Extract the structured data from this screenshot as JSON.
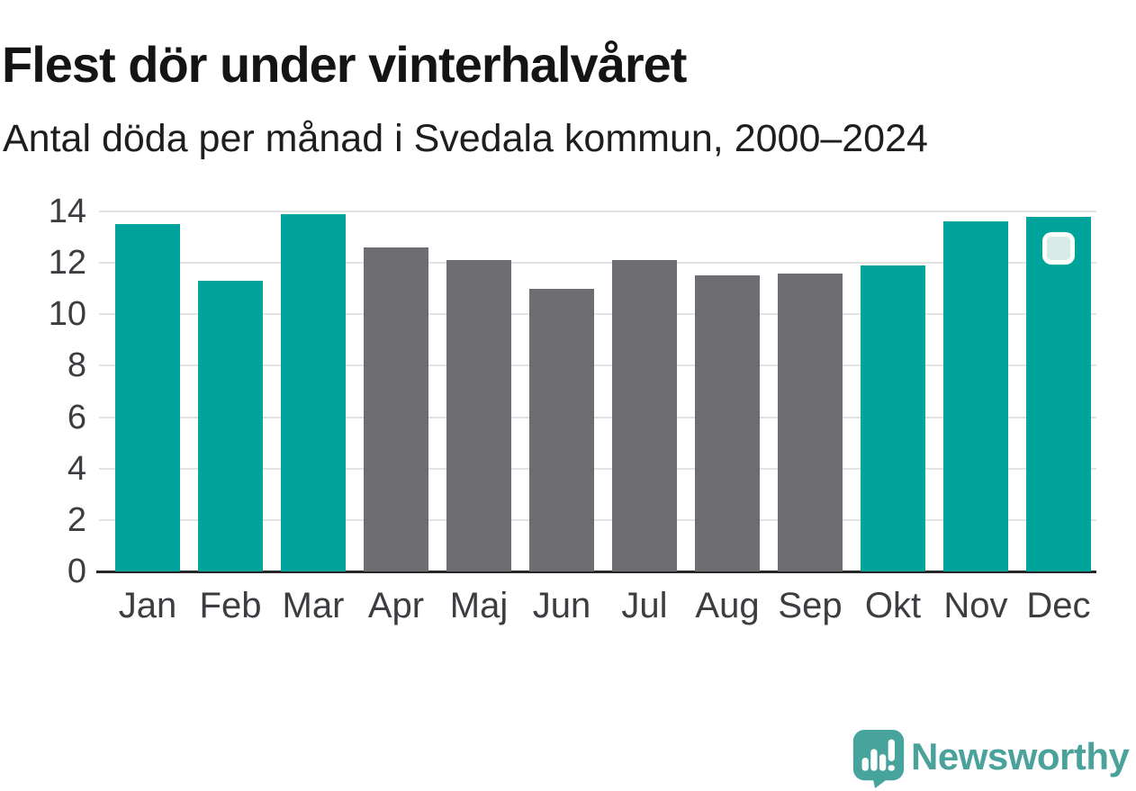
{
  "header": {
    "title": "Flest dör under vinterhalvåret",
    "subtitle": "Antal döda per månad i Svedala kommun, 2000–2024"
  },
  "chart_data": {
    "type": "bar",
    "title": "Flest dör under vinterhalvåret",
    "subtitle": "Antal döda per månad i Svedala kommun, 2000–2024",
    "categories": [
      "Jan",
      "Feb",
      "Mar",
      "Apr",
      "Maj",
      "Jun",
      "Jul",
      "Aug",
      "Sep",
      "Okt",
      "Nov",
      "Dec"
    ],
    "values": [
      13.5,
      11.3,
      13.9,
      12.6,
      12.1,
      11.0,
      12.1,
      11.5,
      11.6,
      11.9,
      13.6,
      13.8
    ],
    "bar_palette": [
      "highlight",
      "highlight",
      "highlight",
      "base",
      "base",
      "base",
      "base",
      "base",
      "base",
      "highlight",
      "highlight",
      "highlight"
    ],
    "xlabel": "",
    "ylabel": "",
    "ylim": [
      0,
      14
    ],
    "yticks": [
      0,
      2,
      4,
      6,
      8,
      10,
      12,
      14
    ],
    "grid": true,
    "legend": "none",
    "colors": {
      "highlight": "#00a49a",
      "base": "#6d6d72",
      "gridline": "#e3e3e3",
      "axis": "#27272a",
      "tick_text": "#3c3c41"
    },
    "annotation": {
      "marker_on_category": "Dec",
      "marker_fill": "#d8ebe8",
      "marker_border": "#ffffff"
    }
  },
  "footer": {
    "brand": "Newsworthy",
    "brand_color": "#4aa29b",
    "logo_color": "#47a49c"
  }
}
